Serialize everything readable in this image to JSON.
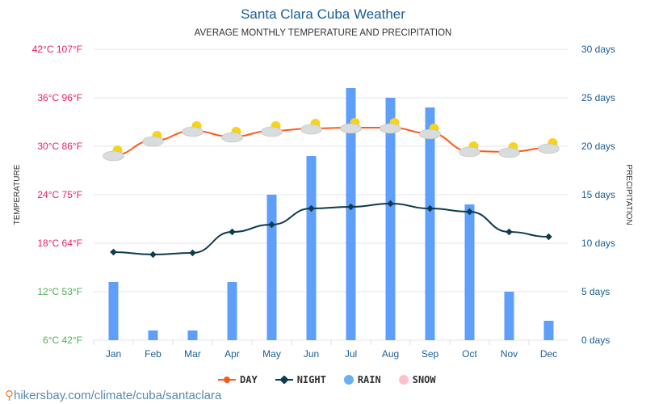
{
  "title": "Santa Clara Cuba Weather",
  "subtitle": "AVERAGE MONTHLY TEMPERATURE AND PRECIPITATION",
  "source": "hikersbay.com/climate/cuba/santaclara",
  "legend": {
    "day": "DAY",
    "night": "NIGHT",
    "rain": "RAIN",
    "snow": "SNOW"
  },
  "colors": {
    "day": "#ff5a1a",
    "night": "#0d3b50",
    "rain": "#5e9ffc",
    "snow": "#ffc0cb"
  },
  "chart_data": {
    "type": "bar+line",
    "categories": [
      "Jan",
      "Feb",
      "Mar",
      "Apr",
      "May",
      "Jun",
      "Jul",
      "Aug",
      "Sep",
      "Oct",
      "Nov",
      "Dec"
    ],
    "ylabel_left": "TEMPERATURE",
    "ylabel_right": "PRECIPITATION",
    "left_ticks": [
      "6°C 42°F",
      "12°C 53°F",
      "18°C 64°F",
      "24°C 75°F",
      "30°C 86°F",
      "36°C 96°F",
      "42°C 107°F"
    ],
    "right_ticks": [
      "0 days",
      "5 days",
      "10 days",
      "15 days",
      "20 days",
      "25 days",
      "30 days"
    ],
    "ylim_left": [
      6,
      42
    ],
    "ylim_right": [
      0,
      30
    ],
    "series": [
      {
        "name": "DAY",
        "type": "line",
        "values": [
          28.9,
          30.7,
          31.9,
          31.2,
          31.9,
          32.2,
          32.3,
          32.3,
          31.6,
          29.4,
          29.3,
          29.8
        ]
      },
      {
        "name": "NIGHT",
        "type": "line",
        "values": [
          16.9,
          16.6,
          16.8,
          19.4,
          20.3,
          22.3,
          22.5,
          22.9,
          22.3,
          21.9,
          19.4,
          18.8
        ]
      },
      {
        "name": "RAIN",
        "type": "bar",
        "values": [
          6,
          1,
          1,
          6,
          15,
          19,
          26,
          25,
          24,
          14,
          5,
          2
        ]
      }
    ],
    "grid": true,
    "legend_position": "bottom"
  }
}
